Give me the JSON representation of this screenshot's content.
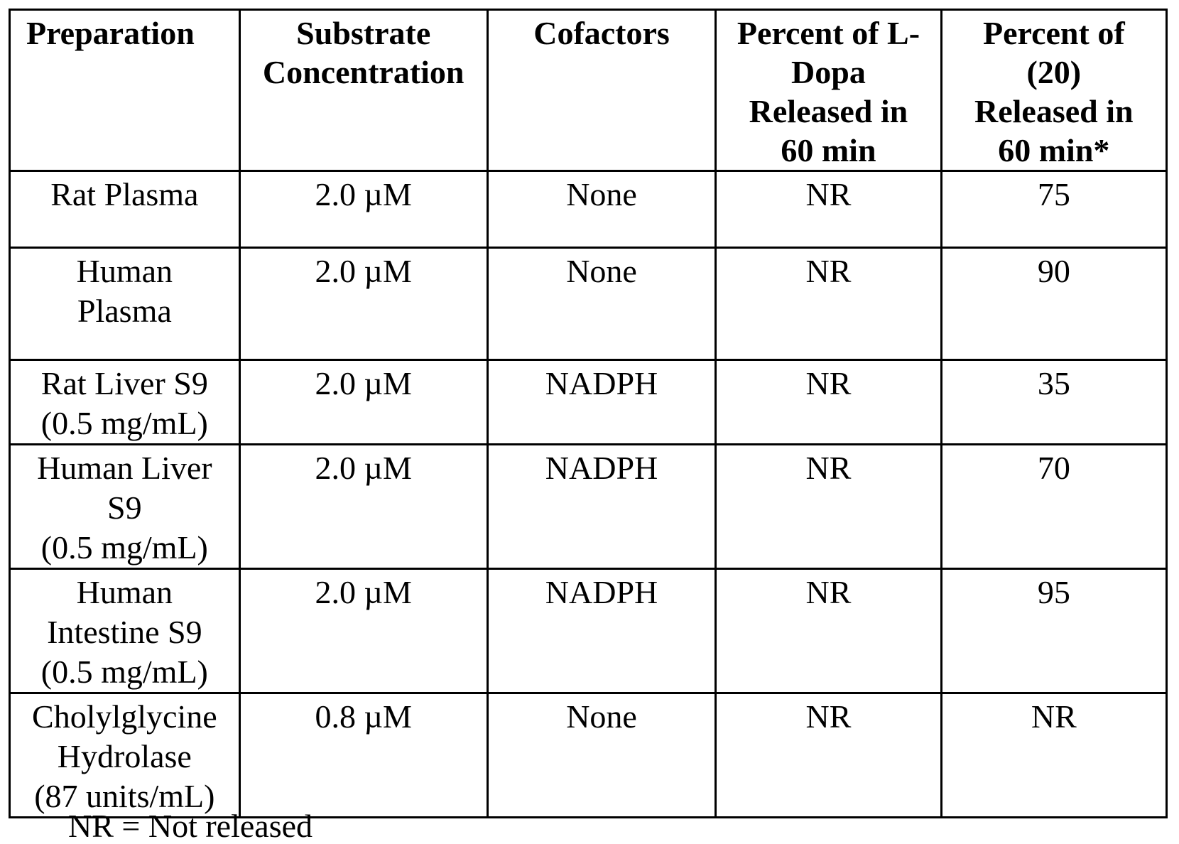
{
  "table": {
    "headers": [
      "Preparation",
      "Substrate\nConcentration",
      "Cofactors",
      "Percent of L-\nDopa\nReleased in\n60 min",
      "Percent of\n(20)\nReleased in\n60 min*"
    ],
    "rows": [
      [
        "Rat Plasma",
        "2.0 µM",
        "None",
        "NR",
        "75"
      ],
      [
        "Human\nPlasma",
        "2.0 µM",
        "None",
        "NR",
        "90"
      ],
      [
        "Rat Liver S9\n(0.5 mg/mL)",
        "2.0 µM",
        "NADPH",
        "NR",
        "35"
      ],
      [
        "Human Liver\nS9\n(0.5 mg/mL)",
        "2.0 µM",
        "NADPH",
        "NR",
        "70"
      ],
      [
        "Human\nIntestine S9\n(0.5 mg/mL)",
        "2.0 µM",
        "NADPH",
        "NR",
        "95"
      ],
      [
        "Cholylglycine\nHydrolase\n(87 units/mL)",
        "0.8 µM",
        "None",
        "NR",
        "NR"
      ]
    ]
  },
  "footnote": "NR = Not released"
}
